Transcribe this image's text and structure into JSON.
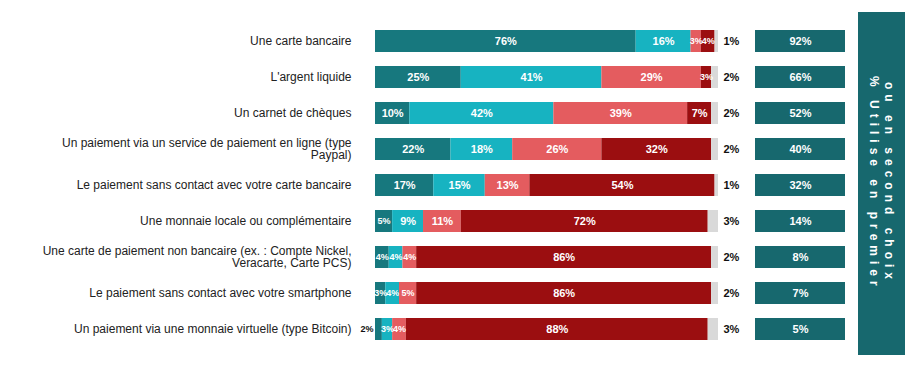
{
  "chart_data": [
    {
      "type": "bar",
      "orientation": "horizontal",
      "stacked": true,
      "data_labels": true,
      "tick_labels": "y",
      "xlim": [
        0,
        100
      ],
      "categories": [
        "Une carte bancaire",
        "L'argent liquide",
        "Un carnet de chèques",
        "Un paiement via un service de paiement en ligne (type Paypal)",
        "Le paiement sans contact avec votre carte bancaire",
        "Une monnaie locale ou complémentaire",
        "Une carte de paiement non bancaire (ex. : Compte Nickel, Veracarte, Carte PCS)",
        "Le paiement sans contact avec votre smartphone",
        "Un paiement via une monnaie virtuelle (type Bitcoin)"
      ],
      "series": [
        {
          "color": "#17787e",
          "values": [
            76,
            25,
            10,
            22,
            17,
            5,
            4,
            3,
            2
          ],
          "value_labels": [
            "76%",
            "25%",
            "10%",
            "22%",
            "17%",
            "5%",
            "4%",
            "3%",
            "2%"
          ]
        },
        {
          "color": "#17b3c1",
          "values": [
            16,
            41,
            42,
            18,
            15,
            9,
            4,
            4,
            3
          ],
          "value_labels": [
            "16%",
            "41%",
            "42%",
            "18%",
            "15%",
            "9%",
            "4%",
            "4%",
            "3%"
          ]
        },
        {
          "color": "#e45c5f",
          "values": [
            3,
            29,
            39,
            26,
            13,
            11,
            4,
            5,
            4
          ],
          "value_labels": [
            "3%",
            "29%",
            "39%",
            "26%",
            "13%",
            "11%",
            "4%",
            "5%",
            "4%"
          ]
        },
        {
          "color": "#9b0e10",
          "values": [
            4,
            3,
            7,
            32,
            54,
            72,
            86,
            86,
            88
          ],
          "value_labels": [
            "4%",
            "3%",
            "7%",
            "32%",
            "54%",
            "72%",
            "86%",
            "86%",
            "88%"
          ]
        },
        {
          "color": "#d9d9d9",
          "values": [
            1,
            2,
            2,
            2,
            1,
            3,
            2,
            2,
            3
          ],
          "value_labels": [
            "1%",
            "2%",
            "2%",
            "2%",
            "1%",
            "3%",
            "2%",
            "2%",
            "3%"
          ]
        }
      ]
    },
    {
      "type": "table",
      "title": [
        "% Utilise en premier",
        "ou en second choix"
      ],
      "color": "#17686e",
      "values": [
        92,
        66,
        52,
        40,
        32,
        14,
        8,
        7,
        5
      ],
      "value_labels": [
        "92%",
        "66%",
        "52%",
        "40%",
        "32%",
        "14%",
        "8%",
        "7%",
        "5%"
      ]
    }
  ]
}
